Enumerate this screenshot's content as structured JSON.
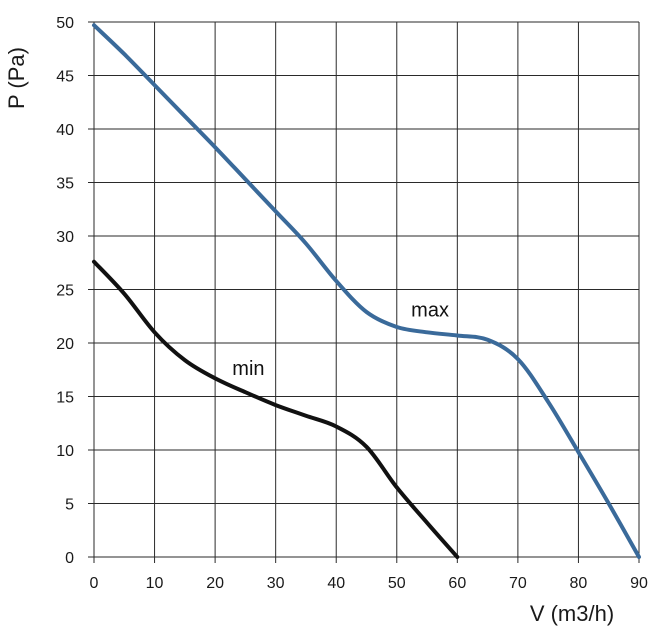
{
  "chart_data": {
    "type": "line",
    "title": "",
    "xlabel": "V (m3/h)",
    "ylabel": "P (Pa)",
    "xlim": [
      0,
      90
    ],
    "ylim": [
      0,
      50
    ],
    "xticks": [
      0,
      10,
      20,
      30,
      40,
      50,
      60,
      70,
      80,
      90
    ],
    "yticks": [
      0,
      5,
      10,
      15,
      20,
      25,
      30,
      35,
      40,
      45,
      50
    ],
    "grid": true,
    "legend": "none",
    "series": [
      {
        "name": "max",
        "color": "#3a6a9a",
        "x": [
          0,
          5,
          10,
          15,
          20,
          25,
          30,
          35,
          40,
          45,
          50,
          55,
          60,
          65,
          70,
          75,
          80,
          85,
          90
        ],
        "y": [
          49.7,
          47.0,
          44.1,
          41.2,
          38.3,
          35.3,
          32.3,
          29.3,
          25.8,
          22.9,
          21.5,
          21.0,
          20.7,
          20.3,
          18.5,
          14.5,
          9.8,
          5.0,
          0.0
        ]
      },
      {
        "name": "min",
        "color": "#111111",
        "x": [
          0,
          5,
          10,
          15,
          20,
          25,
          30,
          35,
          40,
          45,
          50,
          55,
          60
        ],
        "y": [
          27.6,
          24.6,
          21.0,
          18.4,
          16.7,
          15.4,
          14.2,
          13.2,
          12.2,
          10.3,
          6.5,
          3.2,
          0.0
        ]
      }
    ]
  }
}
